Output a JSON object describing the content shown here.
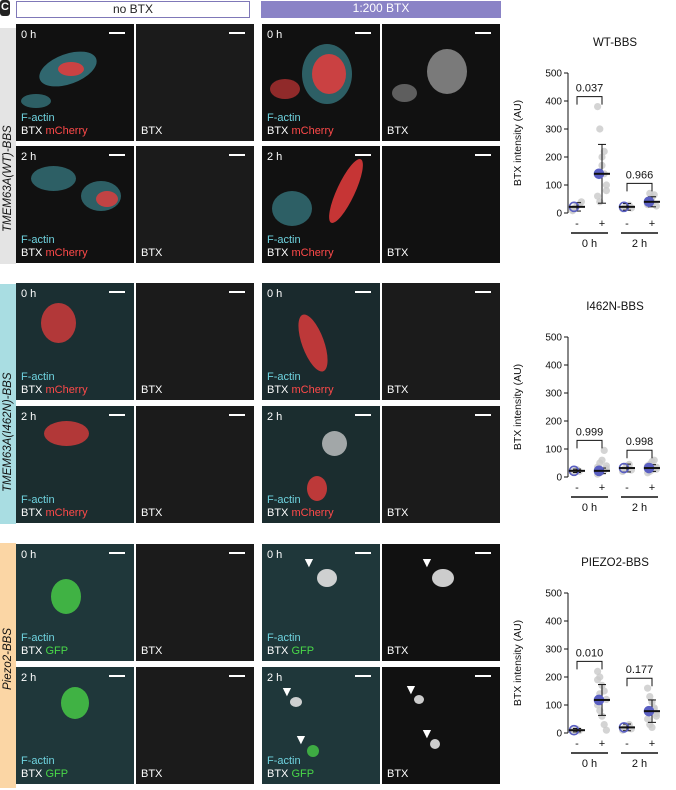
{
  "figure_label": "C",
  "column_headers": [
    "no BTX",
    "1:200 BTX"
  ],
  "rows": [
    {
      "row_label": "TMEM63A(WT)-BBS",
      "times": [
        "0 h",
        "2 h"
      ],
      "labels": {
        "actin": "F-actin",
        "btx": "BTX",
        "reporter": "mCherry"
      }
    },
    {
      "row_label": "TMEM63A(I462N)-BBS",
      "times": [
        "0 h",
        "2 h"
      ],
      "labels": {
        "actin": "F-actin",
        "btx": "BTX",
        "reporter": "mCherry"
      }
    },
    {
      "row_label": "Piezo2-BBS",
      "times": [
        "0 h",
        "2 h"
      ],
      "labels": {
        "actin": "F-actin",
        "btx": "BTX",
        "reporter": "GFP"
      }
    }
  ],
  "chart_data": [
    {
      "type": "scatter",
      "title": "WT-BBS",
      "ylabel": "BTX intensity (AU)",
      "ylim": [
        0,
        500
      ],
      "yticks": [
        0,
        100,
        200,
        300,
        400,
        500
      ],
      "categories": [
        "-",
        "+",
        "-",
        "+"
      ],
      "groups": [
        "0 h",
        "2 h"
      ],
      "p_values": [
        "0.037",
        "0.966"
      ],
      "means": [
        22,
        140,
        22,
        40
      ],
      "sd": [
        15,
        105,
        12,
        18
      ],
      "points": [
        [
          12,
          18,
          25,
          30,
          40,
          8
        ],
        [
          380,
          300,
          200,
          140,
          80,
          60,
          40,
          170,
          220,
          100
        ],
        [
          15,
          20,
          25,
          28,
          18
        ],
        [
          30,
          40,
          55,
          65,
          25,
          45,
          70,
          35
        ]
      ],
      "grid": false
    },
    {
      "type": "scatter",
      "title": "I462N-BBS",
      "ylabel": "BTX intensity (AU)",
      "ylim": [
        0,
        500
      ],
      "yticks": [
        0,
        100,
        200,
        300,
        400,
        500
      ],
      "categories": [
        "-",
        "+",
        "-",
        "+"
      ],
      "groups": [
        "0 h",
        "2 h"
      ],
      "p_values": [
        "0.999",
        "0.998"
      ],
      "means": [
        22,
        22,
        32,
        32
      ],
      "sd": [
        6,
        10,
        14,
        12
      ],
      "points": [
        [
          18,
          22,
          26,
          20
        ],
        [
          10,
          15,
          20,
          25,
          30,
          35,
          50,
          60,
          95,
          40
        ],
        [
          20,
          30,
          40,
          45,
          25
        ],
        [
          15,
          20,
          25,
          30,
          35,
          40,
          45,
          55,
          60,
          28
        ]
      ],
      "grid": false
    },
    {
      "type": "scatter",
      "title": "PIEZO2-BBS",
      "ylabel": "BTX intensity (AU)",
      "ylim": [
        0,
        500
      ],
      "yticks": [
        0,
        100,
        200,
        300,
        400,
        500
      ],
      "categories": [
        "-",
        "+",
        "-",
        "+"
      ],
      "groups": [
        "0 h",
        "2 h"
      ],
      "p_values": [
        "0.010",
        "0.177"
      ],
      "means": [
        10,
        118,
        20,
        78
      ],
      "sd": [
        6,
        55,
        12,
        40
      ],
      "points": [
        [
          6,
          10,
          14,
          8
        ],
        [
          220,
          200,
          170,
          150,
          120,
          100,
          80,
          60,
          30,
          10,
          190,
          140
        ],
        [
          10,
          18,
          25,
          30,
          15
        ],
        [
          160,
          130,
          110,
          90,
          70,
          50,
          30,
          20,
          85,
          60
        ]
      ],
      "grid": false
    }
  ]
}
